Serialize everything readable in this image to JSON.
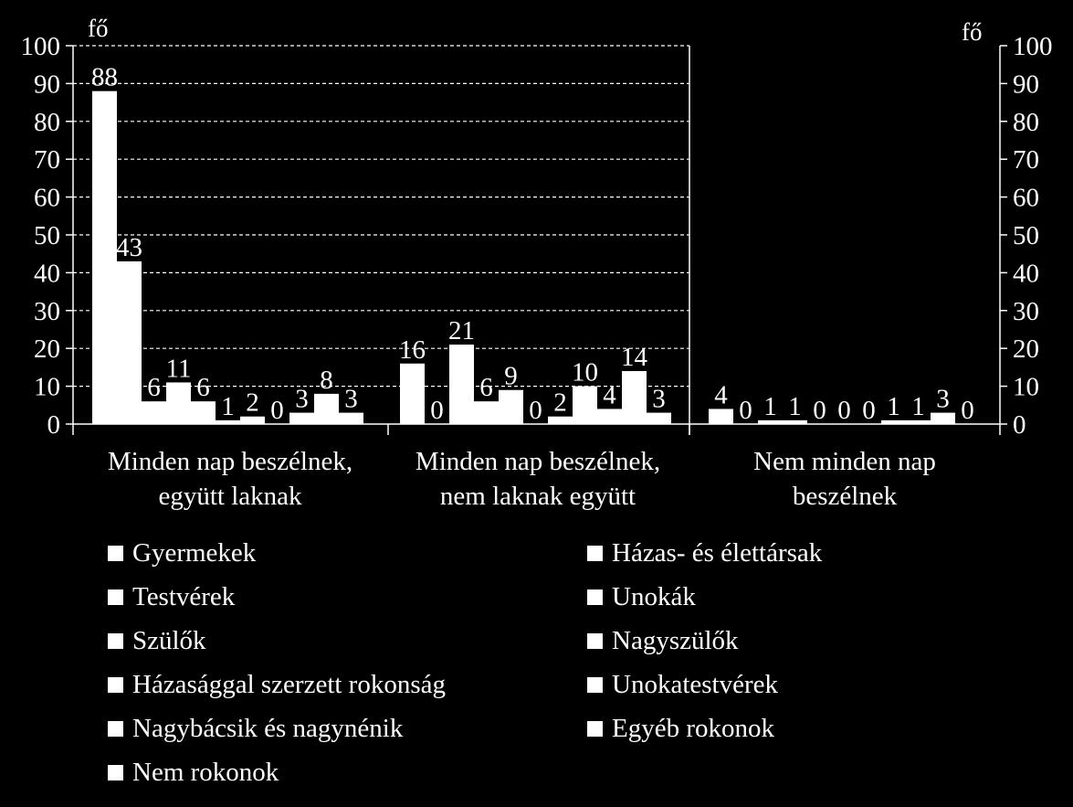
{
  "chart_data": {
    "type": "bar",
    "y_unit_left": "fő",
    "y_unit_right": "fő",
    "ylim": [
      0,
      100
    ],
    "yticks": [
      "0",
      "10",
      "20",
      "30",
      "40",
      "50",
      "60",
      "70",
      "80",
      "90",
      "100"
    ],
    "grid": "dashed horizontal, left panel only",
    "legend_position": "bottom, two columns",
    "categories": [
      [
        "Minden nap beszélnek,",
        "együtt laknak"
      ],
      [
        "Minden nap beszélnek,",
        "nem laknak együtt"
      ],
      [
        "Nem minden nap",
        "beszélnek"
      ]
    ],
    "series": [
      {
        "name": "Gyermekek",
        "values": [
          88,
          16,
          4
        ]
      },
      {
        "name": "Házas- és élettársak",
        "values": [
          43,
          0,
          0
        ]
      },
      {
        "name": "Testvérek",
        "values": [
          6,
          21,
          1
        ]
      },
      {
        "name": "Unokák",
        "values": [
          11,
          6,
          1
        ]
      },
      {
        "name": "Szülők",
        "values": [
          6,
          9,
          0
        ]
      },
      {
        "name": "Nagyszülők",
        "values": [
          1,
          0,
          0
        ]
      },
      {
        "name": "Házasággal szerzett rokonság",
        "values": [
          2,
          2,
          0
        ]
      },
      {
        "name": "Unokatestvérek",
        "values": [
          0,
          10,
          1
        ]
      },
      {
        "name": "Nagybácsik és nagynénik",
        "values": [
          3,
          4,
          1
        ]
      },
      {
        "name": "Egyéb rokonok",
        "values": [
          8,
          14,
          3
        ]
      },
      {
        "name": "Nem rokonok",
        "values": [
          3,
          3,
          0
        ]
      }
    ],
    "colors": {
      "background": "#000000",
      "bars": "#ffffff",
      "text": "#ffffff"
    }
  }
}
